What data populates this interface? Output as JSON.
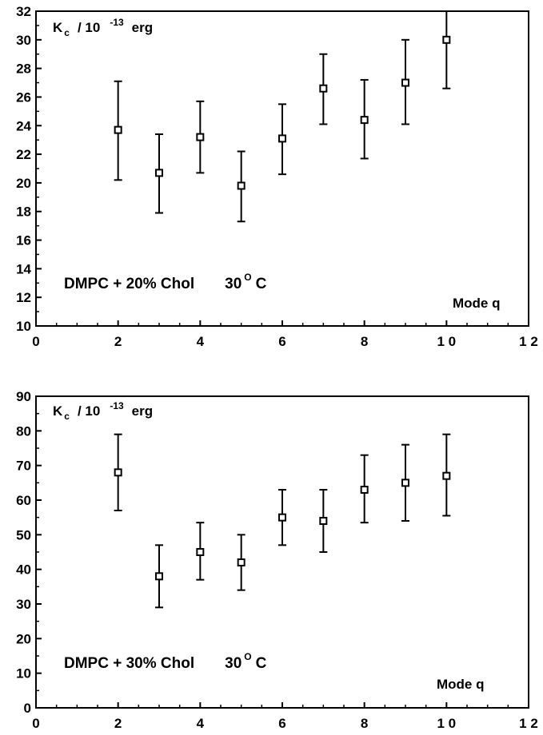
{
  "chart_data": [
    {
      "type": "scatter",
      "ylabel": {
        "main": "K",
        "sub": "c",
        "pre": "/ 10",
        "exp": "-13",
        "unit": "erg"
      },
      "xlabel": "Mode q",
      "annotation": {
        "text": "DMPC + 20% Chol",
        "temp": "30",
        "deg": "O",
        "unit": "C"
      },
      "xlim": [
        0,
        12
      ],
      "ylim": [
        10,
        32
      ],
      "xticks": [
        0,
        2,
        4,
        6,
        8,
        10,
        12
      ],
      "xtick_labels": [
        "0",
        "2",
        "4",
        "6",
        "8",
        "1 0",
        "1 2"
      ],
      "yticks": [
        10,
        12,
        14,
        16,
        18,
        20,
        22,
        24,
        26,
        28,
        30,
        32
      ],
      "ytick_labels": [
        "10",
        "12",
        "14",
        "16",
        "18",
        "20",
        "22",
        "24",
        "26",
        "28",
        "30",
        "32"
      ],
      "grid": false,
      "series": [
        {
          "marker": "open-square",
          "x": [
            2,
            3,
            4,
            5,
            6,
            7,
            8,
            9,
            10
          ],
          "y": [
            23.7,
            20.7,
            23.2,
            19.8,
            23.1,
            26.6,
            24.4,
            27.0,
            30.0
          ],
          "y_low": [
            20.2,
            17.9,
            20.7,
            17.3,
            20.6,
            24.1,
            21.7,
            24.1,
            26.6
          ],
          "y_high": [
            27.1,
            23.4,
            25.7,
            22.2,
            25.5,
            29.0,
            27.2,
            30.0,
            32.0
          ]
        }
      ]
    },
    {
      "type": "scatter",
      "ylabel": {
        "main": "K",
        "sub": "c",
        "pre": "/ 10",
        "exp": "-13",
        "unit": "erg"
      },
      "xlabel": "Mode q",
      "annotation": {
        "text": "DMPC + 30% Chol",
        "temp": "30",
        "deg": "O",
        "unit": "C"
      },
      "xlim": [
        0,
        12
      ],
      "ylim": [
        0,
        90
      ],
      "xticks": [
        0,
        2,
        4,
        6,
        8,
        10,
        12
      ],
      "xtick_labels": [
        "0",
        "2",
        "4",
        "6",
        "8",
        "1 0",
        "1 2"
      ],
      "yticks": [
        0,
        10,
        20,
        30,
        40,
        50,
        60,
        70,
        80,
        90
      ],
      "ytick_labels": [
        "0",
        "10",
        "20",
        "30",
        "40",
        "50",
        "60",
        "70",
        "80",
        "90"
      ],
      "grid": false,
      "series": [
        {
          "marker": "open-square",
          "x": [
            2,
            3,
            4,
            5,
            6,
            7,
            8,
            9,
            10
          ],
          "y": [
            68,
            38,
            45,
            42,
            55,
            54,
            63,
            65,
            67
          ],
          "y_low": [
            57,
            29,
            37,
            34,
            47,
            45,
            53.5,
            54,
            55.5
          ],
          "y_high": [
            79,
            47,
            53.5,
            50,
            63,
            63,
            73,
            76,
            79
          ]
        }
      ]
    }
  ]
}
